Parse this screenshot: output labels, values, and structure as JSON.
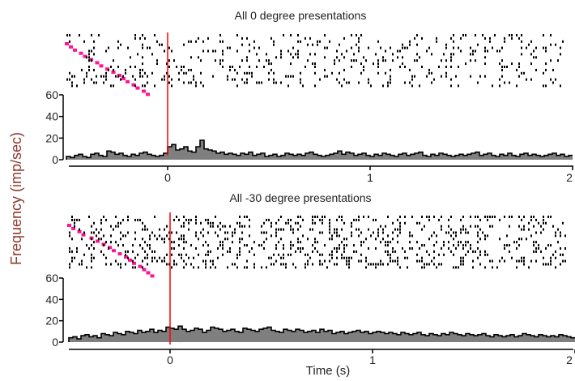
{
  "figure": {
    "ylabel": "Frequency (imp/sec)",
    "xlabel": "Time (s)"
  },
  "chart_data": [
    {
      "type": "bar",
      "title": "All 0 degree presentations",
      "xlim": [
        -0.5,
        2.0
      ],
      "ylim": [
        0,
        60
      ],
      "xticks": [
        0,
        1,
        2
      ],
      "xtick_labels": [
        "0",
        "1",
        "2"
      ],
      "yticks": [
        0,
        20,
        40,
        60
      ],
      "ytick_labels": [
        "0",
        "20",
        "40",
        "60"
      ],
      "stimulus_onset": 0,
      "bin_width": 0.02,
      "values": [
        3,
        2,
        4,
        5,
        3,
        2,
        5,
        6,
        4,
        3,
        8,
        7,
        5,
        6,
        4,
        3,
        5,
        4,
        6,
        7,
        5,
        4,
        3,
        4,
        6,
        12,
        14,
        9,
        10,
        12,
        8,
        7,
        12,
        18,
        10,
        9,
        8,
        6,
        7,
        5,
        6,
        5,
        4,
        6,
        5,
        7,
        4,
        5,
        6,
        3,
        4,
        5,
        3,
        4,
        6,
        5,
        4,
        5,
        4,
        6,
        7,
        5,
        4,
        3,
        4,
        5,
        6,
        8,
        5,
        7,
        6,
        4,
        5,
        6,
        4,
        3,
        5,
        4,
        6,
        5,
        4,
        3,
        5,
        6,
        4,
        5,
        6,
        7,
        4,
        3,
        5,
        4,
        6,
        5,
        4,
        3,
        4,
        5,
        4,
        5,
        6,
        7,
        4,
        5,
        6,
        4,
        3,
        5,
        4,
        6,
        4,
        3,
        5,
        6,
        4,
        5,
        4,
        3,
        4,
        5,
        6,
        4,
        5,
        3,
        4
      ],
      "raster": {
        "trials": 17,
        "spike_density": 0.13,
        "alignment_marker_times": [
          -0.5,
          -0.48,
          -0.46,
          -0.43,
          -0.41,
          -0.38,
          -0.35,
          -0.33,
          -0.3,
          -0.27,
          -0.24,
          -0.22,
          -0.2,
          -0.17,
          -0.15,
          -0.12,
          -0.1
        ]
      }
    },
    {
      "type": "bar",
      "title": "All -30 degree presentations",
      "xlim": [
        -0.5,
        2.0
      ],
      "ylim": [
        0,
        60
      ],
      "xticks": [
        0,
        1,
        2
      ],
      "xtick_labels": [
        "0",
        "1",
        "2"
      ],
      "yticks": [
        0,
        20,
        40,
        60
      ],
      "ytick_labels": [
        "0",
        "20",
        "40",
        "60"
      ],
      "stimulus_onset": 0,
      "bin_width": 0.02,
      "values": [
        4,
        5,
        3,
        6,
        7,
        5,
        6,
        4,
        8,
        7,
        6,
        9,
        8,
        7,
        10,
        9,
        8,
        11,
        9,
        10,
        12,
        9,
        11,
        10,
        14,
        13,
        12,
        15,
        12,
        10,
        11,
        13,
        12,
        9,
        11,
        14,
        13,
        12,
        10,
        11,
        12,
        10,
        9,
        13,
        12,
        11,
        10,
        12,
        13,
        14,
        11,
        10,
        9,
        12,
        11,
        10,
        12,
        11,
        9,
        10,
        11,
        9,
        12,
        10,
        11,
        8,
        9,
        10,
        8,
        9,
        10,
        11,
        9,
        10,
        8,
        9,
        10,
        9,
        8,
        9,
        8,
        7,
        9,
        8,
        7,
        8,
        9,
        7,
        6,
        8,
        7,
        6,
        8,
        7,
        9,
        8,
        7,
        6,
        8,
        7,
        6,
        7,
        8,
        6,
        5,
        7,
        6,
        5,
        6,
        7,
        5,
        6,
        8,
        7,
        6,
        5,
        7,
        6,
        5,
        6,
        5,
        7,
        6,
        5,
        4
      ],
      "raster": {
        "trials": 17,
        "spike_density": 0.22,
        "alignment_marker_times": [
          -0.5,
          -0.48,
          -0.45,
          -0.43,
          -0.39,
          -0.36,
          -0.33,
          -0.3,
          -0.28,
          -0.25,
          -0.22,
          -0.2,
          -0.18,
          -0.15,
          -0.13,
          -0.11,
          -0.09
        ]
      }
    }
  ],
  "colors": {
    "bar_fill": "#7f7f7f",
    "bar_edge": "#000000",
    "spike": "#000000",
    "alignment_marker": "#ff1493",
    "onset_line": "#ff0000",
    "axis": "#000000",
    "ylabel": "#8b3a2e"
  }
}
